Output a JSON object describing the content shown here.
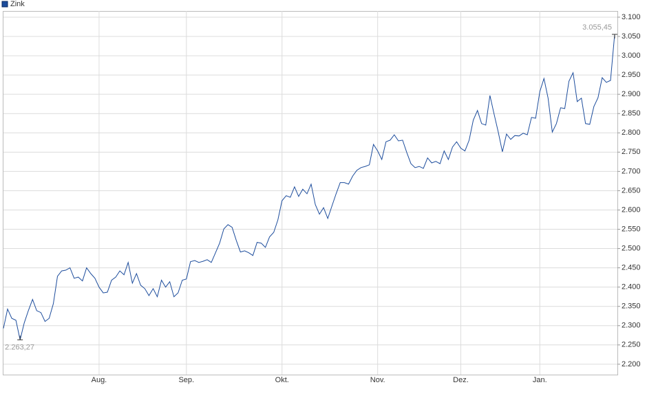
{
  "chart_data": {
    "type": "line",
    "categories": [
      null,
      null,
      null,
      null,
      null,
      null,
      null,
      null,
      null,
      null,
      null,
      null,
      null,
      null,
      null,
      null,
      null,
      null,
      null,
      null,
      null,
      null,
      null,
      "Aug.",
      null,
      null,
      null,
      null,
      null,
      null,
      null,
      null,
      null,
      null,
      null,
      null,
      null,
      null,
      null,
      null,
      null,
      null,
      null,
      null,
      "Sep.",
      null,
      null,
      null,
      null,
      null,
      null,
      null,
      null,
      null,
      null,
      null,
      null,
      null,
      null,
      null,
      null,
      null,
      null,
      null,
      null,
      null,
      null,
      "Okt.",
      null,
      null,
      null,
      null,
      null,
      null,
      null,
      null,
      null,
      null,
      null,
      null,
      null,
      null,
      null,
      null,
      null,
      null,
      null,
      null,
      null,
      null,
      "Nov.",
      null,
      null,
      null,
      null,
      null,
      null,
      null,
      null,
      null,
      null,
      null,
      null,
      null,
      null,
      null,
      null,
      null,
      null,
      null,
      "Dez.",
      null,
      null,
      null,
      null,
      null,
      null,
      null,
      null,
      null,
      null,
      null,
      null,
      null,
      null,
      null,
      null,
      null,
      null,
      "Jan.",
      null,
      null,
      null,
      null,
      null,
      null,
      null,
      null,
      null,
      null,
      null,
      null,
      null,
      null,
      null,
      null,
      null,
      null
    ],
    "series": [
      {
        "name": "Zink",
        "color": "#1c4c9c",
        "values": [
          2293,
          2343,
          2319,
          2314,
          2263.27,
          2307,
          2339,
          2368,
          2339,
          2334,
          2311,
          2319,
          2357,
          2428,
          2442,
          2444,
          2450,
          2423,
          2426,
          2416,
          2450,
          2435,
          2423,
          2400,
          2385,
          2387,
          2418,
          2426,
          2442,
          2432,
          2464,
          2410,
          2435,
          2405,
          2396,
          2378,
          2396,
          2375,
          2418,
          2400,
          2414,
          2375,
          2385,
          2418,
          2421,
          2466,
          2469,
          2464,
          2467,
          2471,
          2464,
          2489,
          2514,
          2551,
          2562,
          2555,
          2521,
          2491,
          2494,
          2489,
          2482,
          2516,
          2514,
          2503,
          2530,
          2542,
          2574,
          2624,
          2637,
          2633,
          2660,
          2635,
          2654,
          2642,
          2667,
          2614,
          2589,
          2606,
          2578,
          2610,
          2642,
          2671,
          2671,
          2667,
          2688,
          2703,
          2710,
          2713,
          2717,
          2770,
          2753,
          2731,
          2777,
          2781,
          2795,
          2779,
          2781,
          2749,
          2720,
          2710,
          2713,
          2708,
          2735,
          2722,
          2726,
          2720,
          2753,
          2731,
          2763,
          2777,
          2760,
          2753,
          2781,
          2833,
          2858,
          2824,
          2820,
          2897,
          2849,
          2802,
          2751,
          2797,
          2783,
          2793,
          2792,
          2799,
          2795,
          2840,
          2838,
          2907,
          2941,
          2890,
          2802,
          2824,
          2865,
          2863,
          2934,
          2956,
          2881,
          2890,
          2824,
          2822,
          2868,
          2891,
          2943,
          2931,
          2936,
          3055.45
        ],
        "value_labels": [
          null,
          null,
          null,
          null,
          "2.263,27",
          null,
          null,
          null,
          null,
          null,
          null,
          null,
          null,
          null,
          null,
          null,
          null,
          null,
          null,
          null,
          null,
          null,
          null,
          null,
          null,
          null,
          null,
          null,
          null,
          null,
          null,
          null,
          null,
          null,
          null,
          null,
          null,
          null,
          null,
          null,
          null,
          null,
          null,
          null,
          null,
          null,
          null,
          null,
          null,
          null,
          null,
          null,
          null,
          null,
          null,
          null,
          null,
          null,
          null,
          null,
          null,
          null,
          null,
          null,
          null,
          null,
          null,
          null,
          null,
          null,
          null,
          null,
          null,
          null,
          null,
          null,
          null,
          null,
          null,
          null,
          null,
          null,
          null,
          null,
          null,
          null,
          null,
          null,
          null,
          null,
          null,
          null,
          null,
          null,
          null,
          null,
          null,
          null,
          null,
          null,
          null,
          null,
          null,
          null,
          null,
          null,
          null,
          null,
          null,
          null,
          null,
          null,
          null,
          null,
          null,
          null,
          null,
          null,
          null,
          null,
          null,
          null,
          null,
          null,
          null,
          null,
          null,
          null,
          null,
          null,
          null,
          null,
          null,
          null,
          null,
          null,
          null,
          null,
          null,
          null,
          null,
          null,
          null,
          null,
          null,
          null,
          null,
          "3.055,45"
        ]
      }
    ],
    "ylim": [
      2173,
      3116
    ],
    "yticks": [
      {
        "value": 2200,
        "label": "2.200"
      },
      {
        "value": 2250,
        "label": "2.250"
      },
      {
        "value": 2300,
        "label": "2.300"
      },
      {
        "value": 2350,
        "label": "2.350"
      },
      {
        "value": 2400,
        "label": "2.400"
      },
      {
        "value": 2450,
        "label": "2.450"
      },
      {
        "value": 2500,
        "label": "2.500"
      },
      {
        "value": 2550,
        "label": "2.550"
      },
      {
        "value": 2600,
        "label": "2.600"
      },
      {
        "value": 2650,
        "label": "2.650"
      },
      {
        "value": 2700,
        "label": "2.700"
      },
      {
        "value": 2750,
        "label": "2.750"
      },
      {
        "value": 2800,
        "label": "2.800"
      },
      {
        "value": 2850,
        "label": "2.850"
      },
      {
        "value": 2900,
        "label": "2.900"
      },
      {
        "value": 2950,
        "label": "2.950"
      },
      {
        "value": 3000,
        "label": "3.000"
      },
      {
        "value": 3050,
        "label": "3.050"
      },
      {
        "value": 3100,
        "label": "3.100"
      }
    ],
    "grid": true,
    "legend": "top-left"
  }
}
